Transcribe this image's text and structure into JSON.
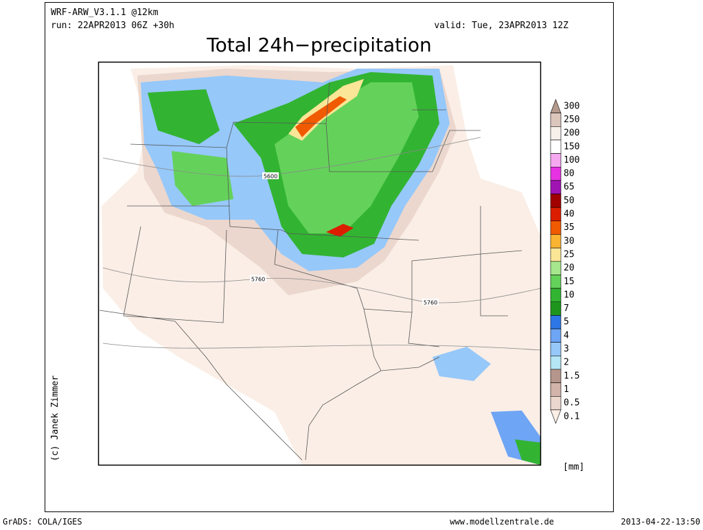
{
  "header": {
    "model": "WRF-ARW_V3.1.1 @12km",
    "run": "run: 22APR2013 06Z +30h",
    "valid": "valid: Tue, 23APR2013 12Z",
    "title": "Total 24h−precipitation"
  },
  "map": {
    "contour_labels": [
      "5600",
      "5760",
      "5760"
    ]
  },
  "credit": "(c) Janek Zimmer",
  "legend": {
    "unit": "[mm]",
    "levels": [
      {
        "label": "300",
        "color": "#b49a8c"
      },
      {
        "label": "250",
        "color": "#dcc6bc"
      },
      {
        "label": "200",
        "color": "#f6efea"
      },
      {
        "label": "150",
        "color": "#ffffff"
      },
      {
        "label": "100",
        "color": "#f5a8f0"
      },
      {
        "label": "80",
        "color": "#e632e1"
      },
      {
        "label": "65",
        "color": "#a014b4"
      },
      {
        "label": "50",
        "color": "#a00000"
      },
      {
        "label": "40",
        "color": "#dc1e00"
      },
      {
        "label": "35",
        "color": "#f05a00"
      },
      {
        "label": "30",
        "color": "#fab432"
      },
      {
        "label": "25",
        "color": "#fae696"
      },
      {
        "label": "20",
        "color": "#a6e68c"
      },
      {
        "label": "15",
        "color": "#64d25a"
      },
      {
        "label": "10",
        "color": "#32b432"
      },
      {
        "label": "7",
        "color": "#1e961e"
      },
      {
        "label": "5",
        "color": "#2d78e6"
      },
      {
        "label": "4",
        "color": "#6ea5f5"
      },
      {
        "label": "3",
        "color": "#96c8fa"
      },
      {
        "label": "2",
        "color": "#b4e6f5"
      },
      {
        "label": "1.5",
        "color": "#b4968c"
      },
      {
        "label": "1",
        "color": "#d2b4aa"
      },
      {
        "label": "0.5",
        "color": "#ebd7cd"
      },
      {
        "label": "0.1",
        "color": "#faeee6"
      }
    ]
  },
  "footer": {
    "left": "GrADS: COLA/IGES",
    "center": "www.modellzentrale.de",
    "right": "2013-04-22-13:50"
  }
}
